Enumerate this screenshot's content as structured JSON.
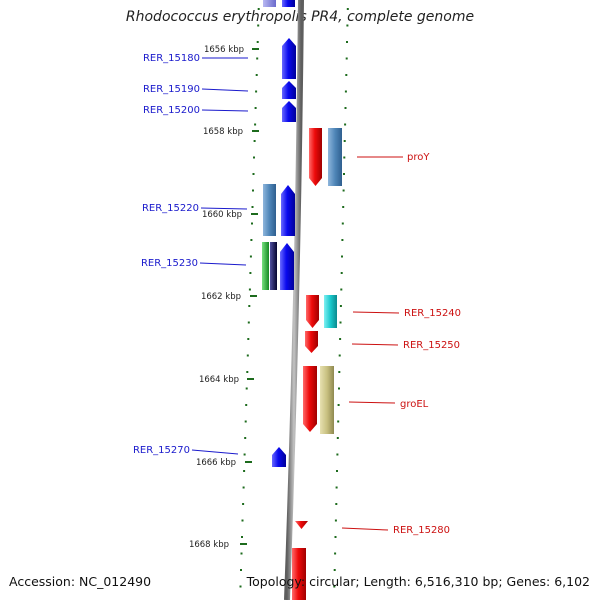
{
  "title": "Rhodococcus erythropolis PR4, complete genome",
  "accession": "Accession: NC_012490",
  "summary": "Topology: circular; Length: 6,516,310 bp; Genes: 6,102",
  "colors": {
    "backbone": "#8a8a8a",
    "tick": "#1d6b1d",
    "left_label": "#1a1acc",
    "right_label": "#cc1111",
    "blue": "#0a0aee",
    "red": "#ee0a0a",
    "steel": "#4f86b8",
    "green": "#22bb33",
    "navy": "#101060",
    "cyan": "#18c8cc",
    "khaki": "#c8c080",
    "lavender": "#8c8ce0"
  },
  "scale_labels": [
    {
      "text": "1656 kbp",
      "kbp": 1656
    },
    {
      "text": "1658 kbp",
      "kbp": 1658
    },
    {
      "text": "1660 kbp",
      "kbp": 1660
    },
    {
      "text": "1662 kbp",
      "kbp": 1662
    },
    {
      "text": "1664 kbp",
      "kbp": 1664
    },
    {
      "text": "1666 kbp",
      "kbp": 1666
    },
    {
      "text": "1668 kbp",
      "kbp": 1668
    }
  ],
  "gene_labels_left": [
    {
      "text": "RER_15180"
    },
    {
      "text": "RER_15190"
    },
    {
      "text": "RER_15200"
    },
    {
      "text": "RER_15220"
    },
    {
      "text": "RER_15230"
    },
    {
      "text": "RER_15270"
    }
  ],
  "gene_labels_right": [
    {
      "text": "proY"
    },
    {
      "text": "RER_15240"
    },
    {
      "text": "RER_15250"
    },
    {
      "text": "groEL"
    },
    {
      "text": "RER_15280"
    }
  ]
}
